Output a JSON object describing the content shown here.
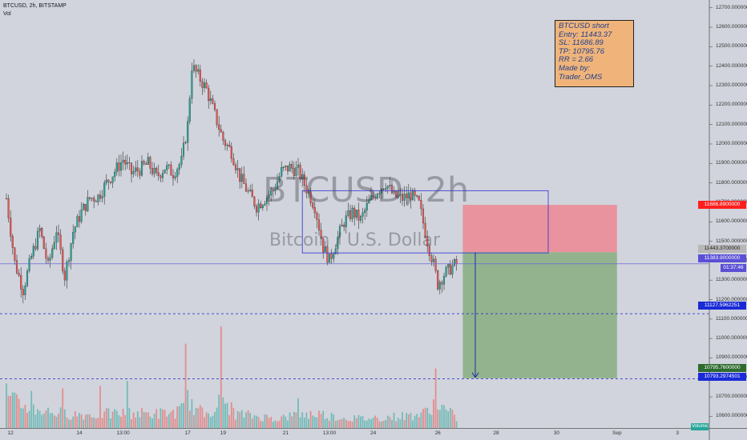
{
  "header": {
    "symbol_line": "BTCUSD, 2h, BITSTAMP",
    "indicator": "Vol"
  },
  "watermark": {
    "symbol": "BTCUSD, 2h",
    "description": "Bitcoin / U.S. Dollar"
  },
  "note": {
    "lines": [
      "BTCUSD short",
      "Entry: 11443.37",
      "SL: 11686.89",
      "TP: 10795.76",
      "RR = 2.66",
      "Made by: Trader_OMS"
    ]
  },
  "price_tags": [
    {
      "label": "11686.8900000",
      "value": 11686.89,
      "color": "#ff1f1f",
      "text_color": "#ffffff"
    },
    {
      "label": "11443.3700000",
      "value": 11443.37,
      "color": "#b7b7b7",
      "text_color": "#222222"
    },
    {
      "label": "11383.9000000",
      "value": 11383.9,
      "color": "#5b4fd6",
      "text_color": "#ffffff"
    },
    {
      "label": "01:37:46",
      "value": 11352,
      "color": "#5b4fd6",
      "text_color": "#ffffff"
    },
    {
      "label": "11127.5962251",
      "value": 11127.5962251,
      "color": "#1a2bd6",
      "text_color": "#ffffff"
    },
    {
      "label": "10795.7600000",
      "value": 10795.76,
      "color": "#2f6b2f",
      "text_color": "#ffffff"
    },
    {
      "label": "10793.2974501",
      "value": 10793.2974501,
      "color": "#1a2bd6",
      "text_color": "#ffffff"
    }
  ],
  "volume_badge": "Volume",
  "chart_data": {
    "type": "candlestick",
    "title": "BTCUSD, 2h, BITSTAMP",
    "xlabel": "",
    "ylabel": "",
    "ylim": [
      10540,
      12740
    ],
    "grid": false,
    "y_ticks": [
      10600,
      10700,
      10800,
      10900,
      11000,
      11100,
      11200,
      11300,
      11400,
      11500,
      11600,
      11700,
      11800,
      11900,
      12000,
      12100,
      12200,
      12300,
      12400,
      12500,
      12600,
      12700
    ],
    "y_tick_labels": [
      "10600.0000000",
      "10700.0000000",
      "10800.0000000",
      "10900.0000000",
      "11000.0000000",
      "11100.0000000",
      "11200.0000000",
      "11300.0000000",
      "11400.0000000",
      "11500.0000000",
      "11600.0000000",
      "11700.0000000",
      "11800.0000000",
      "11900.0000000",
      "12000.0000000",
      "12100.0000000",
      "12200.0000000",
      "12300.0000000",
      "12400.0000000",
      "12500.0000000",
      "12600.0000000",
      "12700.0000000"
    ],
    "x_ticks": [
      {
        "label": "12",
        "bar": 2
      },
      {
        "label": "14",
        "bar": 35
      },
      {
        "label": "13:00",
        "bar": 56
      },
      {
        "label": "17",
        "bar": 87
      },
      {
        "label": "19",
        "bar": 104
      },
      {
        "label": "21",
        "bar": 134
      },
      {
        "label": "13:00",
        "bar": 155
      },
      {
        "label": "24",
        "bar": 176
      },
      {
        "label": "26",
        "bar": 207
      },
      {
        "label": "28",
        "bar": 235
      },
      {
        "label": "30",
        "bar": 264
      },
      {
        "label": "Sep",
        "bar": 293
      },
      {
        "label": "3",
        "bar": 322
      }
    ],
    "close_path": [
      [
        0,
        11720
      ],
      [
        4,
        11390
      ],
      [
        8,
        11250
      ],
      [
        12,
        11420
      ],
      [
        16,
        11560
      ],
      [
        20,
        11370
      ],
      [
        24,
        11560
      ],
      [
        28,
        11320
      ],
      [
        32,
        11550
      ],
      [
        36,
        11650
      ],
      [
        40,
        11720
      ],
      [
        44,
        11730
      ],
      [
        48,
        11800
      ],
      [
        52,
        11860
      ],
      [
        56,
        11920
      ],
      [
        60,
        11850
      ],
      [
        64,
        11870
      ],
      [
        68,
        11900
      ],
      [
        72,
        11830
      ],
      [
        76,
        11880
      ],
      [
        80,
        11850
      ],
      [
        84,
        11910
      ],
      [
        87,
        12100
      ],
      [
        89,
        12400
      ],
      [
        92,
        12350
      ],
      [
        96,
        12280
      ],
      [
        100,
        12150
      ],
      [
        104,
        12020
      ],
      [
        108,
        11960
      ],
      [
        112,
        11830
      ],
      [
        116,
        11750
      ],
      [
        120,
        11680
      ],
      [
        124,
        11720
      ],
      [
        128,
        11760
      ],
      [
        132,
        11860
      ],
      [
        136,
        11880
      ],
      [
        140,
        11860
      ],
      [
        144,
        11770
      ],
      [
        148,
        11680
      ],
      [
        152,
        11470
      ],
      [
        155,
        11400
      ],
      [
        158,
        11490
      ],
      [
        162,
        11600
      ],
      [
        166,
        11650
      ],
      [
        170,
        11610
      ],
      [
        174,
        11700
      ],
      [
        178,
        11760
      ],
      [
        182,
        11800
      ],
      [
        186,
        11730
      ],
      [
        190,
        11720
      ],
      [
        194,
        11740
      ],
      [
        198,
        11690
      ],
      [
        202,
        11500
      ],
      [
        205,
        11380
      ],
      [
        207,
        11280
      ],
      [
        210,
        11330
      ],
      [
        214,
        11370
      ],
      [
        216,
        11384
      ]
    ],
    "volume_path": [
      [
        0,
        60
      ],
      [
        10,
        45
      ],
      [
        20,
        35
      ],
      [
        30,
        30
      ],
      [
        40,
        28
      ],
      [
        50,
        30
      ],
      [
        60,
        32
      ],
      [
        70,
        30
      ],
      [
        80,
        32
      ],
      [
        85,
        40
      ],
      [
        87,
        80
      ],
      [
        89,
        45
      ],
      [
        95,
        30
      ],
      [
        100,
        45
      ],
      [
        104,
        60
      ],
      [
        110,
        30
      ],
      [
        120,
        25
      ],
      [
        130,
        20
      ],
      [
        140,
        28
      ],
      [
        150,
        30
      ],
      [
        160,
        22
      ],
      [
        170,
        20
      ],
      [
        180,
        22
      ],
      [
        190,
        25
      ],
      [
        200,
        30
      ],
      [
        206,
        55
      ],
      [
        210,
        40
      ],
      [
        216,
        22
      ]
    ],
    "volume_spikes": [
      [
        0,
        90
      ],
      [
        12,
        75
      ],
      [
        27,
        80
      ],
      [
        45,
        85
      ],
      [
        58,
        95
      ],
      [
        86,
        170
      ],
      [
        103,
        205
      ],
      [
        140,
        60
      ],
      [
        206,
        120
      ]
    ],
    "annotations": {
      "short_position": {
        "entry": 11443.37,
        "stop_loss": 11686.89,
        "take_profit": 10795.76,
        "rr": 2.66,
        "bar_start": 219,
        "bar_end": 293
      },
      "consolidation_box": {
        "bar_start": 142,
        "bar_end": 260,
        "high": 11760,
        "low": 11440
      },
      "arrow": {
        "bar": 225,
        "from": 11443.37,
        "to": 10795.76
      },
      "horizontal_lines": [
        {
          "value": 11383.9,
          "style": "solid"
        },
        {
          "value": 11127.5962251,
          "style": "dashed"
        },
        {
          "value": 10793.2974501,
          "style": "dashed"
        }
      ]
    }
  }
}
